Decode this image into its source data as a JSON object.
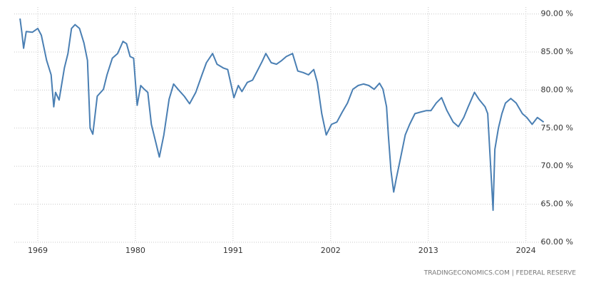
{
  "chart_data": {
    "type": "line",
    "color": "#4a7fb3",
    "source": "TRADINGECONOMICS.COM | FEDERAL RESERVE",
    "grid": true,
    "xlim": [
      1966.35,
      2027.0
    ],
    "ylim": [
      60,
      90.9
    ],
    "xticks": [
      1969,
      1980,
      1991,
      2002,
      2013,
      2024
    ],
    "yticks": [
      {
        "value": 60,
        "label": "60.00 %"
      },
      {
        "value": 65,
        "label": "65.00 %"
      },
      {
        "value": 70,
        "label": "70.00 %"
      },
      {
        "value": 75,
        "label": "75.00 %"
      },
      {
        "value": 80,
        "label": "80.00 %"
      },
      {
        "value": 85,
        "label": "85.00 %"
      },
      {
        "value": 90,
        "label": "90.00 %"
      }
    ],
    "x": [
      1967.0,
      1967.2,
      1967.4,
      1967.7,
      1968.4,
      1969.0,
      1969.4,
      1970.0,
      1970.5,
      1970.8,
      1971.0,
      1971.4,
      1972.0,
      1972.4,
      1972.8,
      1973.2,
      1973.7,
      1974.2,
      1974.6,
      1974.9,
      1975.2,
      1975.7,
      1976.4,
      1976.8,
      1977.4,
      1978.0,
      1978.6,
      1979.0,
      1979.4,
      1979.8,
      1980.2,
      1980.6,
      1981.0,
      1981.4,
      1981.8,
      1982.3,
      1982.7,
      1983.2,
      1983.8,
      1984.3,
      1984.8,
      1985.5,
      1986.1,
      1986.8,
      1987.5,
      1988.0,
      1988.7,
      1989.2,
      1989.9,
      1990.4,
      1990.8,
      1991.1,
      1991.6,
      1992.0,
      1992.6,
      1993.2,
      1993.9,
      1994.3,
      1994.7,
      1995.3,
      1995.9,
      1996.5,
      1997.0,
      1997.7,
      1998.3,
      1998.9,
      1999.5,
      2000.1,
      2000.5,
      2001.0,
      2001.5,
      2002.1,
      2002.7,
      2003.3,
      2003.9,
      2004.5,
      2005.1,
      2005.7,
      2006.3,
      2006.9,
      2007.5,
      2007.9,
      2008.3,
      2008.5,
      2008.8,
      2009.1,
      2009.4,
      2009.9,
      2010.4,
      2010.9,
      2011.5,
      2012.1,
      2012.8,
      2013.3,
      2013.9,
      2014.5,
      2015.1,
      2015.8,
      2016.4,
      2017.0,
      2017.5,
      2018.2,
      2018.7,
      2019.4,
      2019.7,
      2020.3,
      2020.5,
      2020.9,
      2021.3,
      2021.7,
      2022.3,
      2022.9,
      2023.6,
      2024.1,
      2024.7,
      2025.3,
      2026.0
    ],
    "values": [
      89.4,
      87.6,
      85.5,
      87.7,
      87.6,
      88.1,
      87.2,
      83.9,
      82.0,
      77.8,
      79.7,
      78.7,
      82.9,
      84.8,
      88.1,
      88.6,
      88.1,
      86.2,
      83.9,
      75.0,
      74.2,
      79.2,
      80.1,
      82.0,
      84.2,
      84.8,
      86.4,
      86.1,
      84.4,
      84.2,
      78.0,
      80.6,
      80.1,
      79.7,
      75.5,
      73.1,
      71.2,
      74.1,
      78.8,
      80.8,
      80.1,
      79.2,
      78.2,
      79.7,
      82.0,
      83.6,
      84.8,
      83.4,
      82.9,
      82.7,
      80.6,
      79.0,
      80.6,
      79.8,
      81.0,
      81.3,
      82.9,
      83.8,
      84.8,
      83.6,
      83.4,
      83.9,
      84.4,
      84.8,
      82.5,
      82.3,
      82.0,
      82.7,
      81.0,
      76.9,
      74.1,
      75.5,
      75.8,
      77.1,
      78.3,
      80.1,
      80.6,
      80.8,
      80.6,
      80.1,
      80.9,
      80.1,
      77.8,
      74.1,
      69.4,
      66.6,
      68.4,
      71.2,
      74.1,
      75.5,
      76.9,
      77.1,
      77.3,
      77.3,
      78.3,
      79.0,
      77.3,
      75.8,
      75.2,
      76.4,
      77.8,
      79.7,
      78.8,
      77.8,
      76.9,
      64.2,
      72.2,
      75.0,
      76.9,
      78.3,
      78.9,
      78.3,
      76.9,
      76.4,
      75.5,
      76.4,
      75.8
    ]
  }
}
